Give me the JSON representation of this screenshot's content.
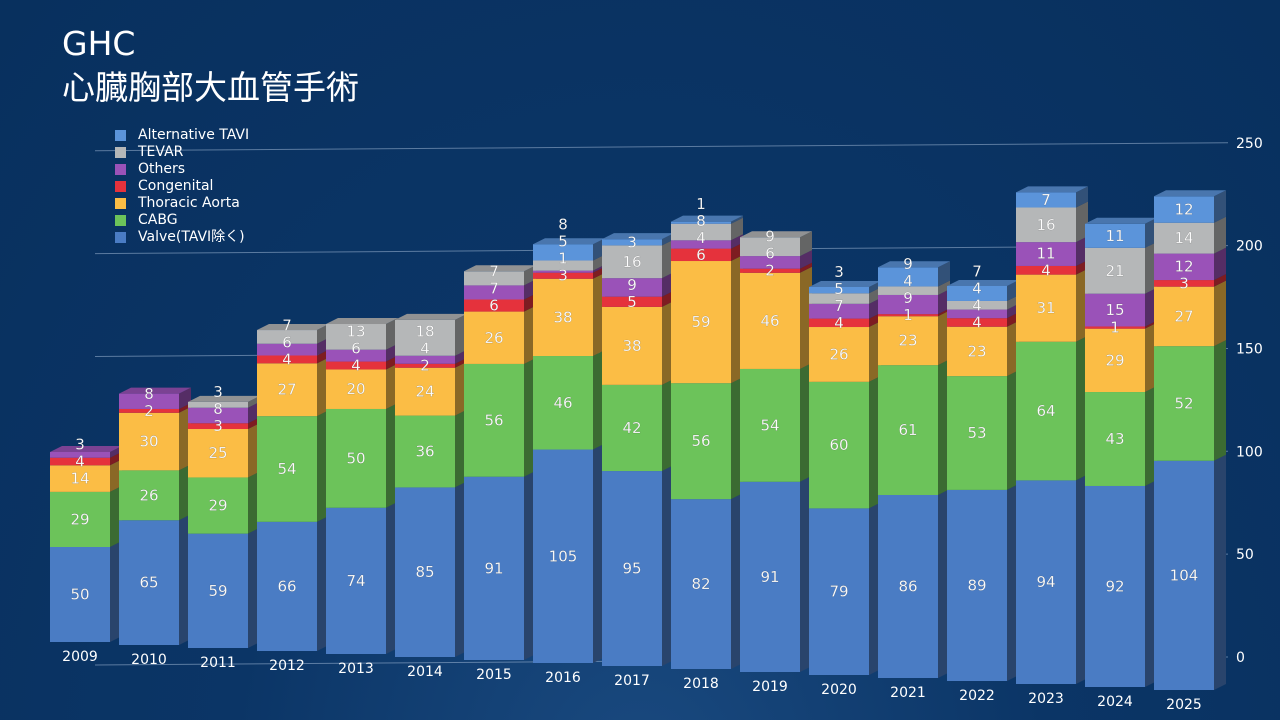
{
  "title": {
    "line1": "GHC",
    "line2": "心臓胸部大血管手術"
  },
  "chart_data": {
    "type": "bar",
    "stacked": true,
    "style": "3d",
    "categories": [
      "2009",
      "2010",
      "2011",
      "2012",
      "2013",
      "2014",
      "2015",
      "2016",
      "2017",
      "2018",
      "2019",
      "2020",
      "2021",
      "2022",
      "2023",
      "2024",
      "2025"
    ],
    "series": [
      {
        "name": "Valve(TAVI除く)",
        "color": "#4a7cc4",
        "values": [
          50,
          65,
          59,
          66,
          74,
          85,
          91,
          105,
          95,
          82,
          91,
          79,
          86,
          89,
          94,
          92,
          104
        ]
      },
      {
        "name": "CABG",
        "color": "#6cc35a",
        "values": [
          29,
          26,
          29,
          54,
          50,
          36,
          56,
          46,
          42,
          56,
          54,
          60,
          61,
          53,
          64,
          43,
          52
        ]
      },
      {
        "name": "Thoracic Aorta",
        "color": "#fbbd45",
        "values": [
          14,
          30,
          25,
          27,
          20,
          24,
          26,
          38,
          38,
          59,
          46,
          26,
          23,
          23,
          31,
          29,
          27
        ]
      },
      {
        "name": "Congenital",
        "color": "#e5323c",
        "values": [
          4,
          2,
          3,
          4,
          4,
          2,
          6,
          3,
          5,
          6,
          2,
          4,
          1,
          4,
          4,
          1,
          3
        ]
      },
      {
        "name": "Others",
        "color": "#9a52b8",
        "values": [
          3,
          8,
          8,
          6,
          6,
          4,
          7,
          1,
          9,
          4,
          6,
          7,
          9,
          4,
          11,
          15,
          12
        ]
      },
      {
        "name": "TEVAR",
        "color": "#b5b7b8",
        "values": [
          null,
          null,
          3,
          7,
          13,
          18,
          7,
          5,
          16,
          8,
          9,
          5,
          4,
          4,
          16,
          21,
          14
        ]
      },
      {
        "name": "Alternative TAVI",
        "color": "#5b94da",
        "values": [
          null,
          null,
          null,
          null,
          null,
          null,
          null,
          8,
          3,
          1,
          null,
          3,
          9,
          7,
          7,
          11,
          12
        ]
      }
    ],
    "yaxis": {
      "ticks": [
        "0",
        "50",
        "100",
        "150",
        "200",
        "250"
      ],
      "range": [
        0,
        250
      ],
      "position": "right"
    },
    "grid": true,
    "legend": "top-left"
  }
}
